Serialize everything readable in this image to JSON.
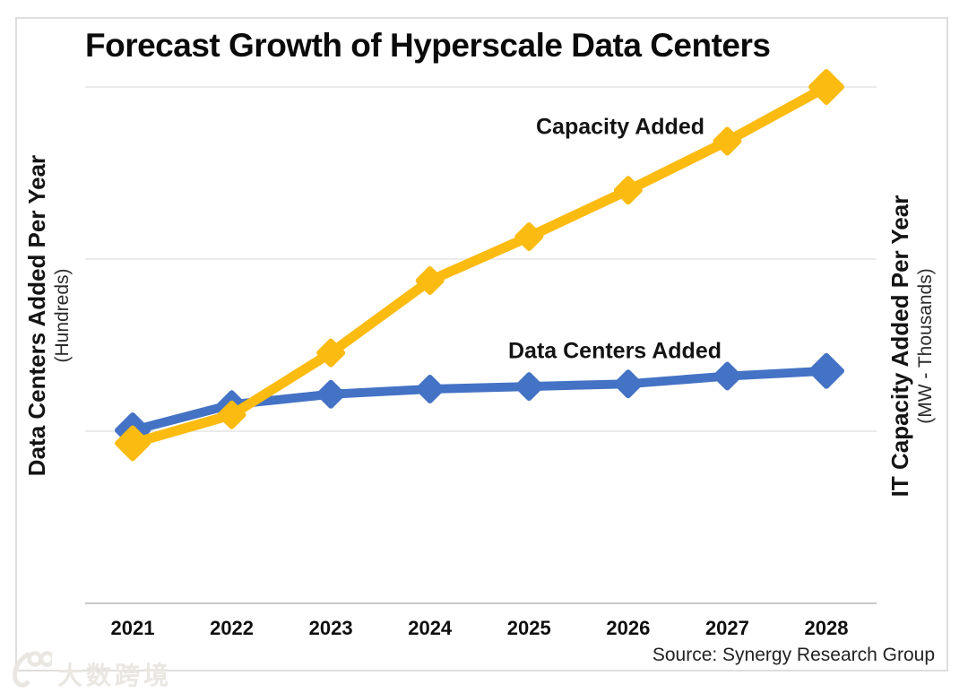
{
  "title": "Forecast Growth of Hyperscale Data Centers",
  "source": "Source: Synergy Research Group",
  "watermark": {
    "text": "大数跨境"
  },
  "axes": {
    "left": {
      "label": "Data Centers Added Per Year",
      "sub": "(Hundreds)"
    },
    "right": {
      "label": "IT Capacity Added Per Year",
      "sub": "(MW - Thousands)"
    },
    "x_ticks": [
      "2021",
      "2022",
      "2023",
      "2024",
      "2025",
      "2026",
      "2027",
      "2028"
    ]
  },
  "series_labels": {
    "capacity": "Capacity Added",
    "datacenters": "Data Centers Added"
  },
  "colors": {
    "capacity": "#FCBB10",
    "datacenters": "#4472C4",
    "grid": "#ebebeb",
    "axis_line": "#c9c9c9",
    "text": "#141414",
    "watermark": "#eae7e3"
  },
  "chart_data": {
    "type": "line",
    "title": "Forecast Growth of Hyperscale Data Centers",
    "x": [
      "2021",
      "2022",
      "2023",
      "2024",
      "2025",
      "2026",
      "2027",
      "2028"
    ],
    "y_axis_left": {
      "label": "Data Centers Added Per Year",
      "sub_label": "(Hundreds)",
      "numeric_ticks_shown": false
    },
    "y_axis_right": {
      "label": "IT Capacity Added Per Year",
      "sub_label": "(MW - Thousands)",
      "numeric_ticks_shown": false
    },
    "grid": "horizontal-only",
    "legend": "inline-labels-next-to-lines",
    "source": "Source: Synergy Research Group",
    "series": [
      {
        "name": "Capacity Added",
        "axis": "right",
        "unit": "MW - Thousands",
        "color": "#FCBB10",
        "marker": "diamond",
        "values_pct_of_plot_height": [
          31,
          36.5,
          48.5,
          62.5,
          71,
          80,
          89.5,
          100
        ]
      },
      {
        "name": "Data Centers Added",
        "axis": "left",
        "unit": "Hundreds",
        "color": "#4472C4",
        "marker": "diamond",
        "values_pct_of_plot_height": [
          33.5,
          38.5,
          40.5,
          41.5,
          42,
          42.5,
          44,
          45
        ]
      }
    ]
  }
}
